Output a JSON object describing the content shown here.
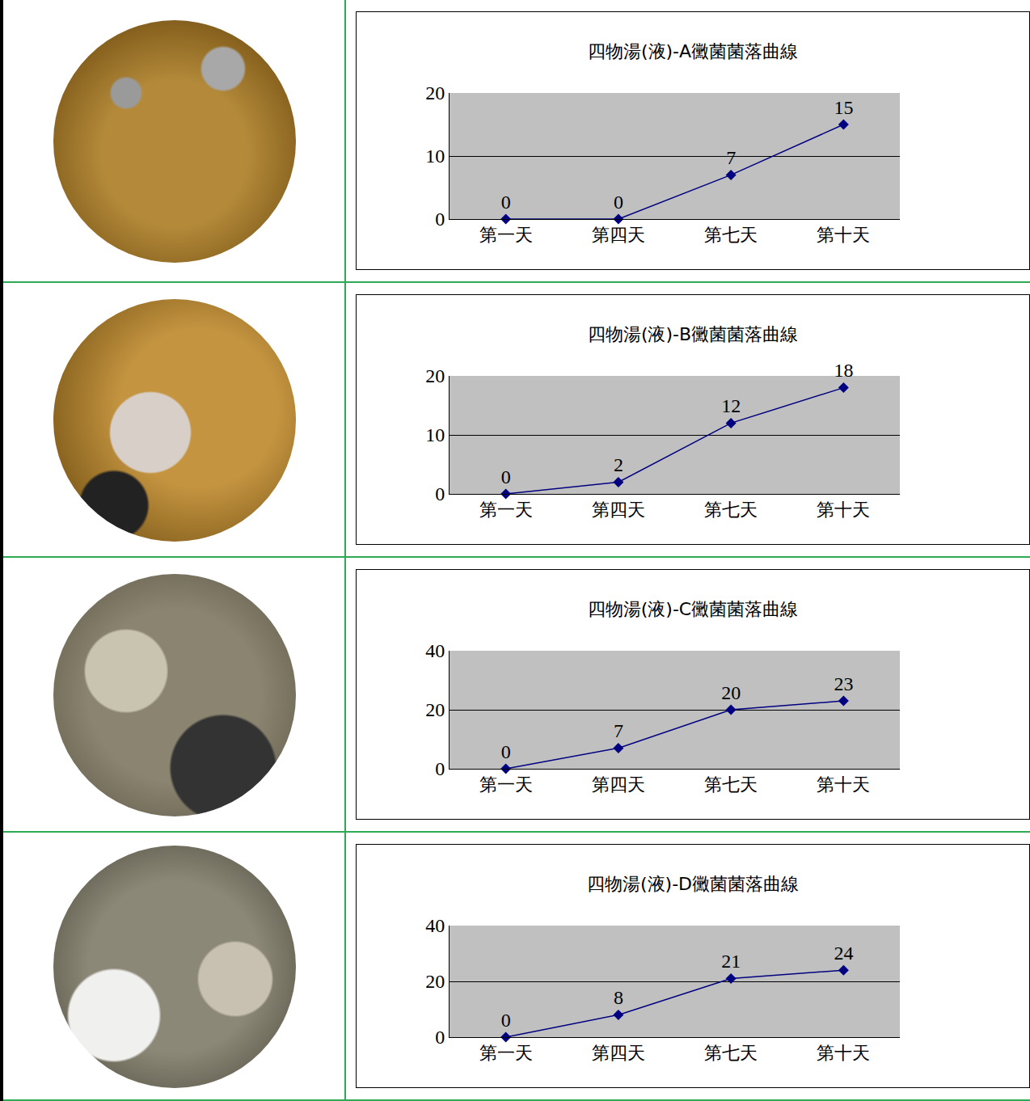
{
  "chart_data": [
    {
      "type": "line",
      "title": "四物湯(液)-A黴菌菌落曲線",
      "categories": [
        "第一天",
        "第四天",
        "第七天",
        "第十天"
      ],
      "values": [
        0,
        0,
        7,
        15
      ],
      "color": "#000080",
      "marker": "diamond",
      "ylim": [
        0,
        20
      ],
      "yticks": [
        0,
        10,
        20
      ],
      "grid": true,
      "data_labels": true
    },
    {
      "type": "line",
      "title": "四物湯(液)-B黴菌菌落曲線",
      "categories": [
        "第一天",
        "第四天",
        "第七天",
        "第十天"
      ],
      "values": [
        0,
        2,
        12,
        18
      ],
      "color": "#000080",
      "marker": "diamond",
      "ylim": [
        0,
        20
      ],
      "yticks": [
        0,
        10,
        20
      ],
      "grid": true,
      "data_labels": true
    },
    {
      "type": "line",
      "title": "四物湯(液)-C黴菌菌落曲線",
      "categories": [
        "第一天",
        "第四天",
        "第七天",
        "第十天"
      ],
      "values": [
        0,
        7,
        20,
        23
      ],
      "color": "#000080",
      "marker": "diamond",
      "ylim": [
        0,
        40
      ],
      "yticks": [
        0,
        20,
        40
      ],
      "grid": true,
      "data_labels": true
    },
    {
      "type": "line",
      "title": "四物湯(液)-D黴菌菌落曲線",
      "categories": [
        "第一天",
        "第四天",
        "第七天",
        "第十天"
      ],
      "values": [
        0,
        8,
        21,
        24
      ],
      "color": "#000080",
      "marker": "diamond",
      "ylim": [
        0,
        40
      ],
      "yticks": [
        0,
        20,
        40
      ],
      "grid": true,
      "data_labels": true
    }
  ]
}
